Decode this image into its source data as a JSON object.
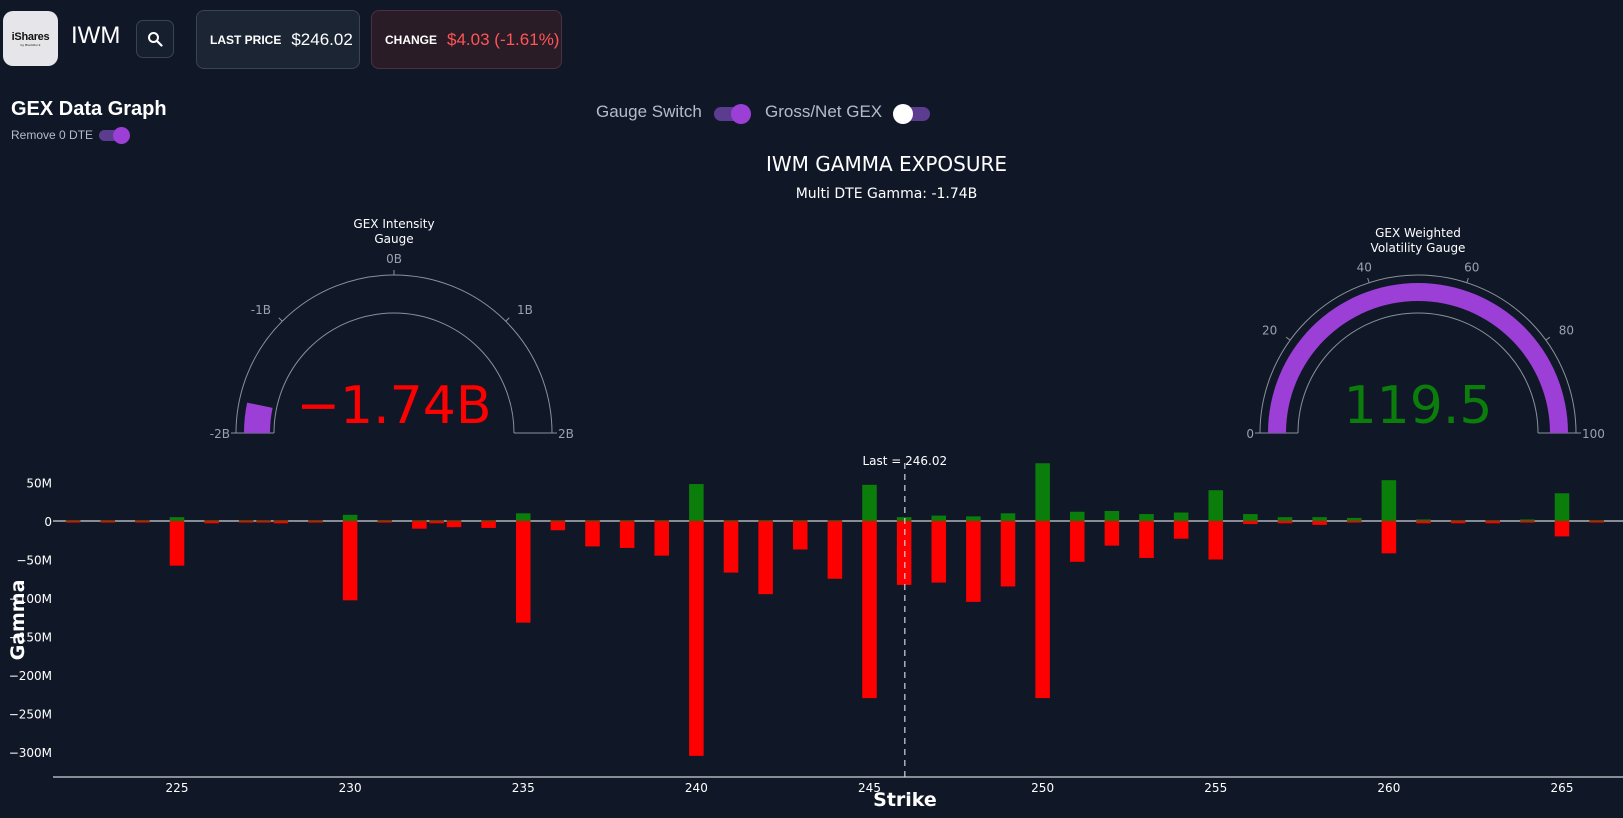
{
  "header": {
    "logo_brand": "iShares",
    "logo_sub": "by BlackRock",
    "ticker": "IWM",
    "last_price_label": "LAST PRICE",
    "last_price_value": "$246.02",
    "change_label": "CHANGE",
    "change_value": "$4.03 (-1.61%)"
  },
  "controls": {
    "section_title": "GEX Data Graph",
    "remove_0dte_label": "Remove 0 DTE",
    "gauge_switch_label": "Gauge Switch",
    "gross_net_label": "Gross/Net GEX",
    "remove_0dte_on": true,
    "gauge_switch_on": true,
    "gross_net_on": false
  },
  "colors": {
    "background": "#101828",
    "accent": "#9b3fd6",
    "positive": "#0b7d0b",
    "negative": "#ff0000",
    "negative_text": "#ff5555"
  },
  "chart_data": {
    "type": "bar",
    "title": "IWM GAMMA EXPOSURE",
    "subtitle": "Multi DTE Gamma: -1.74B",
    "xlabel": "Strike",
    "ylabel": "Gamma",
    "xlim": [
      221.5,
      267
    ],
    "ylim": [
      -335,
      75
    ],
    "xticks": [
      225,
      230,
      235,
      240,
      245,
      250,
      255,
      260,
      265
    ],
    "ytick_values": [
      50,
      0,
      -50,
      -100,
      -150,
      -200,
      -250,
      -300
    ],
    "ytick_labels": [
      "50M",
      "0",
      "−50M",
      "−100M",
      "−150M",
      "−200M",
      "−250M",
      "−300M"
    ],
    "last_line": {
      "x": 246.02,
      "label": "Last = 246.02"
    },
    "strikes": [
      222,
      223,
      224,
      225,
      226,
      227,
      227.5,
      228,
      229,
      230,
      231,
      232,
      232.5,
      233,
      234,
      235,
      236,
      237,
      238,
      239,
      240,
      241,
      242,
      243,
      244,
      245,
      246,
      247,
      248,
      249,
      250,
      251,
      252,
      253,
      254,
      255,
      256,
      257,
      258,
      259,
      260,
      261,
      262,
      263,
      264,
      265,
      266
    ],
    "series": [
      {
        "name": "Positive",
        "color": "#0b7d0b",
        "values": [
          1,
          1,
          1,
          5,
          1,
          1,
          1,
          1,
          1,
          8,
          1,
          1,
          1,
          1,
          1,
          10,
          1,
          1,
          1,
          1,
          48,
          1,
          1,
          1,
          1,
          47,
          5,
          7,
          6,
          10,
          75,
          12,
          13,
          9,
          11,
          40,
          9,
          5,
          5,
          4,
          53,
          2,
          1,
          1,
          2,
          36,
          1
        ]
      },
      {
        "name": "Negative",
        "color": "#ff0000",
        "values": [
          -2,
          -2,
          -2,
          -58,
          -3,
          -2,
          -2,
          -3,
          -2,
          -103,
          -2,
          -10,
          -3,
          -8,
          -9,
          -132,
          -12,
          -33,
          -35,
          -45,
          -305,
          -67,
          -95,
          -37,
          -75,
          -230,
          -83,
          -80,
          -105,
          -85,
          -230,
          -53,
          -32,
          -48,
          -23,
          -50,
          -4,
          -3,
          -5,
          -2,
          -42,
          -3,
          -3,
          -3,
          -2,
          -20,
          -2
        ]
      }
    ]
  },
  "gauge_intensity": {
    "title_line1": "GEX Intensity",
    "title_line2": "Gauge",
    "value": -1.74,
    "value_label": "−1.74B",
    "min": -2,
    "max": 2,
    "ticks": [
      -2,
      -1,
      0,
      1,
      2
    ],
    "tick_labels": [
      "-2B",
      "-1B",
      "0B",
      "1B",
      "2B"
    ],
    "value_color": "#ff0000",
    "bar_color": "#9b3fd6"
  },
  "gauge_volatility": {
    "title_line1": "GEX Weighted",
    "title_line2": "Volatility Gauge",
    "value": 119.5,
    "value_label": "119.5",
    "min": 0,
    "max": 100,
    "ticks": [
      0,
      20,
      40,
      60,
      80,
      100
    ],
    "tick_labels": [
      "0",
      "20",
      "40",
      "60",
      "80",
      "100"
    ],
    "value_color": "#0b7d0b",
    "bar_color": "#9b3fd6"
  }
}
